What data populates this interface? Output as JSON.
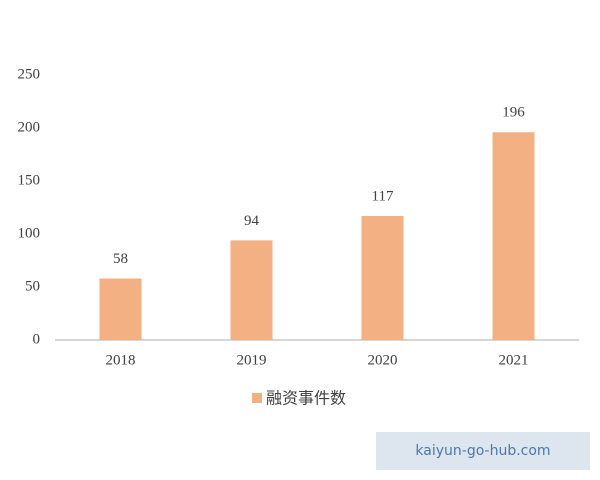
{
  "chart_data": {
    "type": "bar",
    "categories": [
      "2018",
      "2019",
      "2020",
      "2021"
    ],
    "series": [
      {
        "name": "融资事件数",
        "color": "#f3b183",
        "values": [
          58,
          94,
          117,
          196
        ]
      }
    ],
    "ylim": [
      0,
      250
    ],
    "yticks": [
      0,
      50,
      100,
      150,
      200,
      250
    ],
    "grid": false,
    "legend": "bottom",
    "annotations": [
      "kaiyun-go-hub.com"
    ]
  }
}
